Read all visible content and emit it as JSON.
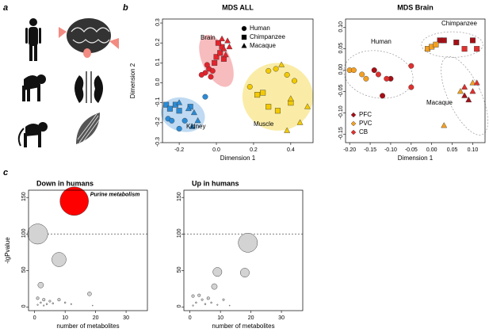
{
  "panel_labels": [
    "a",
    "b",
    "c"
  ],
  "chart_data": [
    {
      "type": "scatter",
      "title": "MDS ALL",
      "x_label": "Dimension 1",
      "y_label": "Dimension 2",
      "xlim": [
        -0.29,
        0.52
      ],
      "xticks": [
        -0.2,
        {
          "value": 0,
          "label": "0.0"
        },
        0.2,
        0.4
      ],
      "ylim": [
        -0.3,
        0.32
      ],
      "yticks": [
        -0.3,
        -0.2,
        -0.1,
        {
          "value": 0,
          "label": "0.0"
        },
        0.1,
        0.2,
        0.3
      ],
      "legend": "top-right",
      "groups": [
        {
          "name": "Brain",
          "color": "#e4232c",
          "halo": "#f4a6a8",
          "ellipse": [
            0.0,
            0.11,
            0.075,
            0.14,
            25
          ],
          "series": [
            {
              "name": "Human",
              "marker": "circle",
              "x": [
                -0.06,
                -0.04,
                -0.03,
                -0.05,
                -0.02,
                -0.08
              ],
              "y": [
                0.05,
                0.07,
                0.03,
                0.09,
                0.06,
                0.04
              ]
            },
            {
              "name": "Chimpanzee",
              "marker": "square",
              "x": [
                0.0,
                0.02,
                0.03,
                0.01,
                -0.01,
                0.04
              ],
              "y": [
                0.13,
                0.15,
                0.18,
                0.2,
                0.1,
                0.12
              ]
            },
            {
              "name": "Macaque",
              "marker": "triangle",
              "x": [
                0.04,
                0.06,
                0.05,
                0.07,
                0.03
              ],
              "y": [
                0.17,
                0.21,
                0.14,
                0.18,
                0.22
              ]
            }
          ]
        },
        {
          "name": "Kidney",
          "color": "#2b8bd6",
          "halo": "#a9cdee",
          "ellipse": [
            -0.18,
            -0.16,
            0.12,
            0.085,
            -15
          ],
          "series": [
            {
              "name": "Human",
              "marker": "circle",
              "x": [
                -0.26,
                -0.24,
                -0.2,
                -0.17,
                -0.06
              ],
              "y": [
                -0.18,
                -0.19,
                -0.23,
                -0.19,
                -0.07
              ]
            },
            {
              "name": "Chimpanzee",
              "marker": "square",
              "x": [
                -0.27,
                -0.25,
                -0.22,
                -0.2,
                -0.14
              ],
              "y": [
                -0.11,
                -0.13,
                -0.11,
                -0.14,
                -0.12
              ]
            },
            {
              "name": "Macaque",
              "marker": "triangle",
              "x": [
                -0.2,
                -0.15,
                -0.12,
                -0.1,
                -0.13
              ],
              "y": [
                -0.1,
                -0.13,
                -0.15,
                -0.19,
                -0.22
              ]
            }
          ]
        },
        {
          "name": "Muscle",
          "color": "#f3c900",
          "halo": "#f8e68a",
          "ellipse": [
            0.33,
            -0.07,
            0.19,
            0.17,
            -5
          ],
          "series": [
            {
              "name": "Human",
              "marker": "circle",
              "x": [
                0.28,
                0.32,
                0.38,
                0.18,
                0.42
              ],
              "y": [
                0.06,
                0.07,
                0.04,
                -0.02,
                0.01
              ]
            },
            {
              "name": "Chimpanzee",
              "marker": "square",
              "x": [
                0.22,
                0.28,
                0.33,
                0.4,
                0.25
              ],
              "y": [
                -0.06,
                -0.12,
                -0.14,
                -0.1,
                -0.05
              ]
            },
            {
              "name": "Macaque",
              "marker": "triangle",
              "x": [
                0.35,
                0.4,
                0.45,
                0.38,
                0.49
              ],
              "y": [
                0.09,
                -0.08,
                -0.2,
                -0.24,
                -0.12
              ]
            }
          ]
        }
      ]
    },
    {
      "type": "scatter",
      "title": "MDS Brain",
      "x_label": "Dimension 1",
      "xlim": [
        -0.21,
        0.13
      ],
      "xticks": [
        {
          "value": -0.2,
          "label": "-0.20"
        },
        -0.15,
        {
          "value": -0.1,
          "label": "-0.10"
        },
        -0.05,
        {
          "value": 0,
          "label": "0.00"
        },
        0.05,
        {
          "value": 0.1,
          "label": "0.10"
        }
      ],
      "ylim": [
        -0.17,
        0.12
      ],
      "yticks": [
        -0.15,
        {
          "value": -0.1,
          "label": "-0.10"
        },
        -0.05,
        {
          "value": 0,
          "label": "0.00"
        },
        0.05,
        {
          "value": 0.1,
          "label": "0.10"
        }
      ],
      "legend": "bottom-left",
      "groups": [
        {
          "name": "Human",
          "halo": "none",
          "ellipse": [
            -0.13,
            -0.01,
            0.085,
            0.055,
            -10
          ],
          "series": [
            {
              "name": "PFC",
              "color": "#a50f15",
              "marker": "circle",
              "x": [
                -0.14,
                -0.1,
                -0.12
              ],
              "y": [
                0.0,
                -0.02,
                -0.06
              ]
            },
            {
              "name": "PVC",
              "color": "#f2a024",
              "marker": "circle",
              "x": [
                -0.2,
                -0.19,
                -0.17,
                -0.16
              ],
              "y": [
                0.0,
                0.0,
                -0.01,
                -0.02
              ]
            },
            {
              "name": "CB",
              "color": "#e0302e",
              "marker": "circle",
              "x": [
                -0.13,
                -0.11,
                -0.05,
                -0.05
              ],
              "y": [
                -0.01,
                -0.02,
                0.01,
                -0.04
              ]
            }
          ]
        },
        {
          "name": "Chimpanzee",
          "halo": "none",
          "ellipse": [
            0.05,
            0.06,
            0.075,
            0.03,
            0
          ],
          "series": [
            {
              "name": "PFC",
              "color": "#a50f15",
              "marker": "square",
              "x": [
                0.02,
                0.03,
                0.06,
                0.1
              ],
              "y": [
                0.07,
                0.07,
                0.065,
                0.07
              ]
            },
            {
              "name": "PVC",
              "color": "#f2a024",
              "marker": "square",
              "x": [
                -0.01,
                0.0,
                0.01
              ],
              "y": [
                0.05,
                0.055,
                0.06
              ]
            },
            {
              "name": "CB",
              "color": "#e0302e",
              "marker": "square",
              "x": [
                0.08,
                0.11
              ],
              "y": [
                0.05,
                0.05
              ]
            }
          ]
        },
        {
          "name": "Macaque",
          "halo": "none",
          "ellipse": [
            0.08,
            -0.06,
            0.04,
            0.1,
            25
          ],
          "series": [
            {
              "name": "PFC",
              "color": "#a50f15",
              "marker": "triangle",
              "x": [
                0.08,
                0.09
              ],
              "y": [
                -0.06,
                -0.07
              ]
            },
            {
              "name": "PVC",
              "color": "#f2a024",
              "marker": "triangle",
              "x": [
                0.03,
                0.07,
                0.1
              ],
              "y": [
                -0.13,
                -0.05,
                -0.03
              ]
            },
            {
              "name": "CB",
              "color": "#e0302e",
              "marker": "triangle",
              "x": [
                0.11,
                0.1,
                0.08
              ],
              "y": [
                -0.03,
                -0.05,
                -0.04
              ]
            }
          ]
        }
      ]
    },
    {
      "type": "bubble",
      "title": "Down in humans",
      "x_label": "number of metabolites",
      "y_label": "-lgPvalue",
      "xlim": [
        -2,
        37
      ],
      "xticks": [
        0,
        10,
        20,
        30
      ],
      "ylim": [
        -5,
        160
      ],
      "yticks": [
        0,
        50,
        100,
        150
      ],
      "hline": 100,
      "annotation": "Purine metabolism",
      "x": [
        13,
        1,
        8,
        2,
        18,
        1,
        3,
        5,
        2,
        4,
        6,
        8,
        10,
        12,
        1,
        3,
        19
      ],
      "y": [
        145,
        100,
        65,
        30,
        18,
        12,
        10,
        8,
        6,
        4,
        5,
        10,
        6,
        4,
        3,
        2,
        2
      ],
      "sizes": [
        100,
        50,
        25,
        4,
        2,
        1,
        1,
        0.5,
        0.3,
        0.3,
        0.3,
        1,
        0.3,
        0.2,
        0.2,
        0.2,
        0.1
      ],
      "colors": [
        "#ff0000",
        "#d3d3d3",
        "#d3d3d3",
        "#d3d3d3",
        "#d3d3d3",
        "#d3d3d3",
        "#d3d3d3",
        "#d3d3d3",
        "#d3d3d3",
        "#d3d3d3",
        "#d3d3d3",
        "#d3d3d3",
        "#d3d3d3",
        "#d3d3d3",
        "#d3d3d3",
        "#d3d3d3",
        "#d3d3d3"
      ]
    },
    {
      "type": "bubble",
      "title": "Up in humans",
      "x_label": "number of metabolites",
      "xlim": [
        -2,
        37
      ],
      "xticks": [
        0,
        10,
        20,
        30
      ],
      "ylim": [
        -5,
        160
      ],
      "yticks": [
        0,
        50,
        100,
        150
      ],
      "hline": 100,
      "x": [
        19,
        18,
        9,
        8,
        1,
        3,
        4,
        6,
        2,
        5,
        7,
        9,
        11,
        13,
        1
      ],
      "y": [
        88,
        47,
        48,
        28,
        15,
        16,
        10,
        12,
        6,
        4,
        6,
        3,
        10,
        2,
        2
      ],
      "sizes": [
        45,
        10,
        10,
        4,
        1,
        1,
        0.5,
        1,
        0.3,
        0.3,
        0.3,
        0.2,
        0.5,
        0.1,
        0.2
      ],
      "colors": [
        "#d3d3d3",
        "#d3d3d3",
        "#d3d3d3",
        "#d3d3d3",
        "#d3d3d3",
        "#d3d3d3",
        "#d3d3d3",
        "#d3d3d3",
        "#d3d3d3",
        "#d3d3d3",
        "#d3d3d3",
        "#d3d3d3",
        "#d3d3d3",
        "#d3d3d3",
        "#d3d3d3"
      ]
    }
  ]
}
